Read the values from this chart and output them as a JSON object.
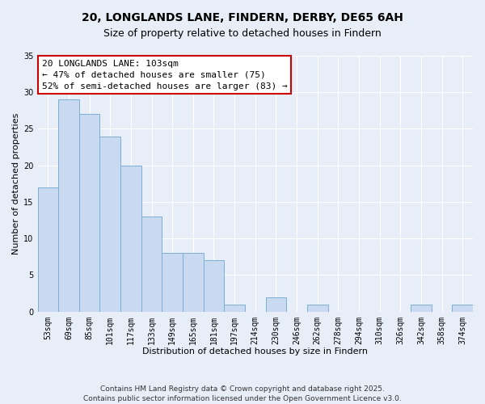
{
  "title": "20, LONGLANDS LANE, FINDERN, DERBY, DE65 6AH",
  "subtitle": "Size of property relative to detached houses in Findern",
  "xlabel": "Distribution of detached houses by size in Findern",
  "ylabel": "Number of detached properties",
  "categories": [
    "53sqm",
    "69sqm",
    "85sqm",
    "101sqm",
    "117sqm",
    "133sqm",
    "149sqm",
    "165sqm",
    "181sqm",
    "197sqm",
    "214sqm",
    "230sqm",
    "246sqm",
    "262sqm",
    "278sqm",
    "294sqm",
    "310sqm",
    "326sqm",
    "342sqm",
    "358sqm",
    "374sqm"
  ],
  "values": [
    17,
    29,
    27,
    24,
    20,
    13,
    8,
    8,
    7,
    1,
    0,
    2,
    0,
    1,
    0,
    0,
    0,
    0,
    1,
    0,
    1
  ],
  "bar_color": "#c9d9f0",
  "bar_edge_color": "#7bafd4",
  "ylim": [
    0,
    35
  ],
  "yticks": [
    0,
    5,
    10,
    15,
    20,
    25,
    30,
    35
  ],
  "background_color": "#e8eef8",
  "grid_color": "#ffffff",
  "annotation_text": "20 LONGLANDS LANE: 103sqm\n← 47% of detached houses are smaller (75)\n52% of semi-detached houses are larger (83) →",
  "annotation_box_color": "#ffffff",
  "annotation_box_edge": "#cc0000",
  "footer_line1": "Contains HM Land Registry data © Crown copyright and database right 2025.",
  "footer_line2": "Contains public sector information licensed under the Open Government Licence v3.0.",
  "title_fontsize": 10,
  "subtitle_fontsize": 9,
  "xlabel_fontsize": 8,
  "ylabel_fontsize": 8,
  "tick_fontsize": 7,
  "annotation_fontsize": 8,
  "footer_fontsize": 6.5
}
